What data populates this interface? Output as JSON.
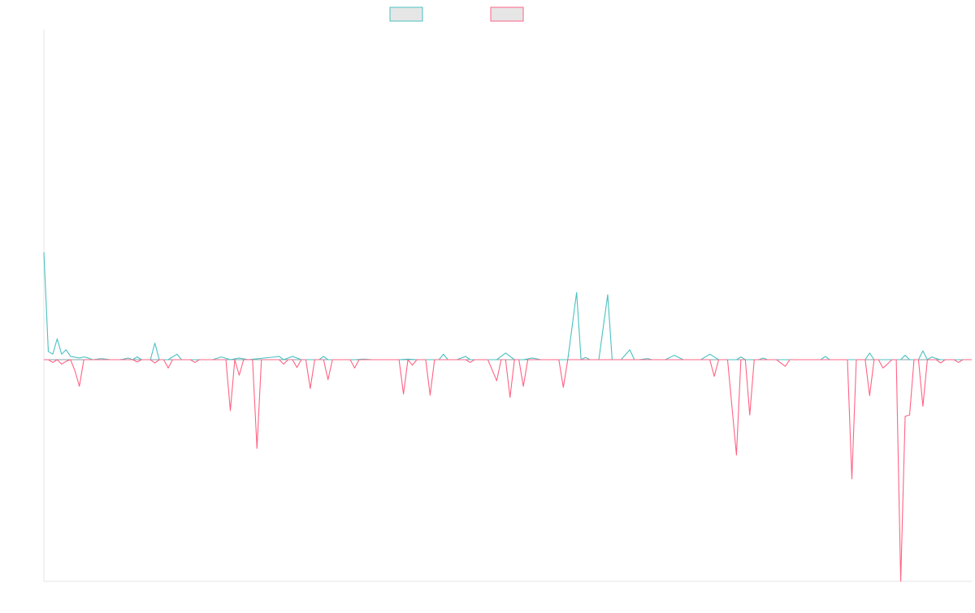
{
  "chart_data": {
    "type": "line",
    "title": "",
    "xlabel": "",
    "ylabel": "",
    "grid": false,
    "legend_position": "top-center",
    "x_count": 210,
    "ylim": [
      -400,
      600
    ],
    "baseline": 0,
    "series": [
      {
        "color": "#4bc0c0",
        "fill": "#e6e6e6",
        "points": [
          [
            0,
            195
          ],
          [
            1,
            15
          ],
          [
            2,
            10
          ],
          [
            3,
            38
          ],
          [
            4,
            10
          ],
          [
            5,
            18
          ],
          [
            6,
            6
          ],
          [
            8,
            3
          ],
          [
            9,
            5
          ],
          [
            10,
            3
          ],
          [
            11,
            0
          ],
          [
            13,
            2
          ],
          [
            15,
            0
          ],
          [
            17,
            0
          ],
          [
            18,
            1
          ],
          [
            19,
            3
          ],
          [
            20,
            0
          ],
          [
            21,
            5
          ],
          [
            22,
            0
          ],
          [
            24,
            0
          ],
          [
            25,
            30
          ],
          [
            26,
            0
          ],
          [
            28,
            0
          ],
          [
            30,
            10
          ],
          [
            31,
            0
          ],
          [
            38,
            0
          ],
          [
            40,
            5
          ],
          [
            42,
            0
          ],
          [
            44,
            3
          ],
          [
            46,
            0
          ],
          [
            52,
            5
          ],
          [
            53,
            6
          ],
          [
            54,
            0
          ],
          [
            56,
            6
          ],
          [
            58,
            0
          ],
          [
            62,
            0
          ],
          [
            63,
            6
          ],
          [
            64,
            0
          ],
          [
            70,
            0
          ],
          [
            72,
            1
          ],
          [
            74,
            0
          ],
          [
            80,
            0
          ],
          [
            82,
            1
          ],
          [
            84,
            0
          ],
          [
            89,
            0
          ],
          [
            90,
            10
          ],
          [
            91,
            0
          ],
          [
            93,
            0
          ],
          [
            95,
            6
          ],
          [
            96,
            0
          ],
          [
            102,
            0
          ],
          [
            104,
            12
          ],
          [
            106,
            0
          ],
          [
            108,
            0
          ],
          [
            110,
            3
          ],
          [
            112,
            0
          ],
          [
            118,
            0
          ],
          [
            120,
            122
          ],
          [
            121,
            0
          ],
          [
            122,
            4
          ],
          [
            123,
            0
          ],
          [
            125,
            0
          ],
          [
            127,
            118
          ],
          [
            128,
            0
          ],
          [
            130,
            0
          ],
          [
            132,
            18
          ],
          [
            133,
            0
          ],
          [
            134,
            0
          ],
          [
            136,
            2
          ],
          [
            137,
            0
          ],
          [
            140,
            0
          ],
          [
            142,
            8
          ],
          [
            144,
            0
          ],
          [
            148,
            0
          ],
          [
            150,
            10
          ],
          [
            152,
            0
          ],
          [
            156,
            0
          ],
          [
            157,
            5
          ],
          [
            158,
            0
          ],
          [
            161,
            0
          ],
          [
            162,
            3
          ],
          [
            163,
            0
          ],
          [
            175,
            0
          ],
          [
            176,
            6
          ],
          [
            177,
            0
          ],
          [
            178,
            0
          ],
          [
            180,
            0
          ],
          [
            185,
            0
          ],
          [
            186,
            12
          ],
          [
            187,
            0
          ],
          [
            189,
            0
          ],
          [
            190,
            0
          ],
          [
            192,
            0
          ],
          [
            193,
            0
          ],
          [
            194,
            8
          ],
          [
            195,
            0
          ],
          [
            197,
            0
          ],
          [
            198,
            16
          ],
          [
            199,
            0
          ],
          [
            200,
            5
          ],
          [
            201,
            2
          ],
          [
            202,
            0
          ],
          [
            206,
            0
          ],
          [
            207,
            0
          ],
          [
            209,
            0
          ]
        ]
      },
      {
        "color": "#ff6384",
        "fill": "#e6e6e6",
        "points": [
          [
            0,
            0
          ],
          [
            1,
            0
          ],
          [
            2,
            -5
          ],
          [
            3,
            0
          ],
          [
            4,
            -8
          ],
          [
            5,
            -3
          ],
          [
            6,
            0
          ],
          [
            7,
            -20
          ],
          [
            8,
            -48
          ],
          [
            9,
            0
          ],
          [
            10,
            0
          ],
          [
            11,
            0
          ],
          [
            20,
            0
          ],
          [
            21,
            -4
          ],
          [
            22,
            0
          ],
          [
            24,
            0
          ],
          [
            25,
            -6
          ],
          [
            26,
            0
          ],
          [
            27,
            0
          ],
          [
            28,
            -15
          ],
          [
            29,
            0
          ],
          [
            33,
            0
          ],
          [
            34,
            -5
          ],
          [
            35,
            0
          ],
          [
            41,
            0
          ],
          [
            42,
            -92
          ],
          [
            43,
            0
          ],
          [
            44,
            -28
          ],
          [
            45,
            0
          ],
          [
            46,
            0
          ],
          [
            47,
            0
          ],
          [
            48,
            -160
          ],
          [
            49,
            0
          ],
          [
            53,
            0
          ],
          [
            54,
            -8
          ],
          [
            55,
            0
          ],
          [
            56,
            0
          ],
          [
            57,
            -14
          ],
          [
            58,
            0
          ],
          [
            59,
            0
          ],
          [
            60,
            -52
          ],
          [
            61,
            0
          ],
          [
            63,
            0
          ],
          [
            64,
            -36
          ],
          [
            65,
            0
          ],
          [
            69,
            0
          ],
          [
            70,
            -15
          ],
          [
            71,
            0
          ],
          [
            80,
            0
          ],
          [
            81,
            -62
          ],
          [
            82,
            0
          ],
          [
            83,
            -10
          ],
          [
            84,
            0
          ],
          [
            86,
            0
          ],
          [
            87,
            -64
          ],
          [
            88,
            0
          ],
          [
            95,
            0
          ],
          [
            96,
            -5
          ],
          [
            97,
            0
          ],
          [
            100,
            0
          ],
          [
            102,
            -38
          ],
          [
            103,
            0
          ],
          [
            104,
            0
          ],
          [
            105,
            -68
          ],
          [
            106,
            0
          ],
          [
            107,
            0
          ],
          [
            108,
            -48
          ],
          [
            109,
            0
          ],
          [
            116,
            0
          ],
          [
            117,
            -50
          ],
          [
            118,
            0
          ],
          [
            150,
            0
          ],
          [
            151,
            -30
          ],
          [
            152,
            0
          ],
          [
            154,
            0
          ],
          [
            156,
            -172
          ],
          [
            157,
            0
          ],
          [
            158,
            0
          ],
          [
            159,
            -100
          ],
          [
            160,
            0
          ],
          [
            165,
            0
          ],
          [
            167,
            -12
          ],
          [
            168,
            0
          ],
          [
            181,
            0
          ],
          [
            182,
            -215
          ],
          [
            183,
            0
          ],
          [
            185,
            0
          ],
          [
            186,
            -65
          ],
          [
            187,
            0
          ],
          [
            188,
            0
          ],
          [
            189,
            -15
          ],
          [
            190,
            -8
          ],
          [
            191,
            0
          ],
          [
            192,
            0
          ],
          [
            193,
            -400
          ],
          [
            194,
            -102
          ],
          [
            195,
            -100
          ],
          [
            196,
            0
          ],
          [
            197,
            0
          ],
          [
            198,
            -84
          ],
          [
            199,
            0
          ],
          [
            201,
            0
          ],
          [
            202,
            -6
          ],
          [
            203,
            0
          ],
          [
            205,
            0
          ],
          [
            206,
            -5
          ],
          [
            207,
            0
          ],
          [
            209,
            0
          ]
        ]
      }
    ]
  }
}
